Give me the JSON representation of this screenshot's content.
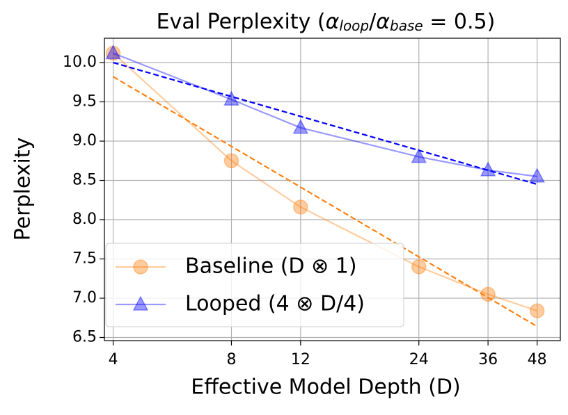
{
  "chart_data": {
    "type": "line",
    "title": [
      "Eval Perplexity (",
      "α",
      "loop",
      "/",
      "α",
      "base",
      " = 0.5)"
    ],
    "title_styles": [
      "normal",
      "italic",
      "sub",
      "normal",
      "italic",
      "sub",
      "normal"
    ],
    "xlabel": "Effective Model Depth (D)",
    "ylabel": "Perplexity",
    "x": [
      4,
      8,
      12,
      24,
      36,
      48
    ],
    "series": [
      {
        "name": "Baseline (D ⊗ 1)",
        "color": "#ff7f0e",
        "marker": "circle",
        "values": [
          10.12,
          8.75,
          8.16,
          7.4,
          7.05,
          6.84
        ]
      },
      {
        "name": "Looped (4 ⊗ D/4)",
        "color": "#0000ff",
        "marker": "triangle",
        "values": [
          10.12,
          9.53,
          9.17,
          8.8,
          8.63,
          8.55
        ]
      }
    ],
    "fits": [
      {
        "color": "#ff7f0e",
        "x": [
          4,
          48
        ],
        "values": [
          9.82,
          6.64
        ]
      },
      {
        "color": "#0000ff",
        "x": [
          4,
          48
        ],
        "values": [
          10.0,
          8.45
        ]
      }
    ],
    "xscale": "log",
    "xlim": [
      3.8,
      55
    ],
    "ylim": [
      6.46,
      10.31
    ],
    "xticks": [
      4,
      8,
      12,
      24,
      36,
      48
    ],
    "yticks": [
      {
        "value": 10,
        "label": "10.0"
      },
      9.5,
      {
        "value": 9,
        "label": "9.0"
      },
      8.5,
      {
        "value": 8,
        "label": "8.0"
      },
      7.5,
      {
        "value": 7,
        "label": "7.0"
      },
      6.5
    ],
    "grid": true,
    "legend": "lower left"
  }
}
